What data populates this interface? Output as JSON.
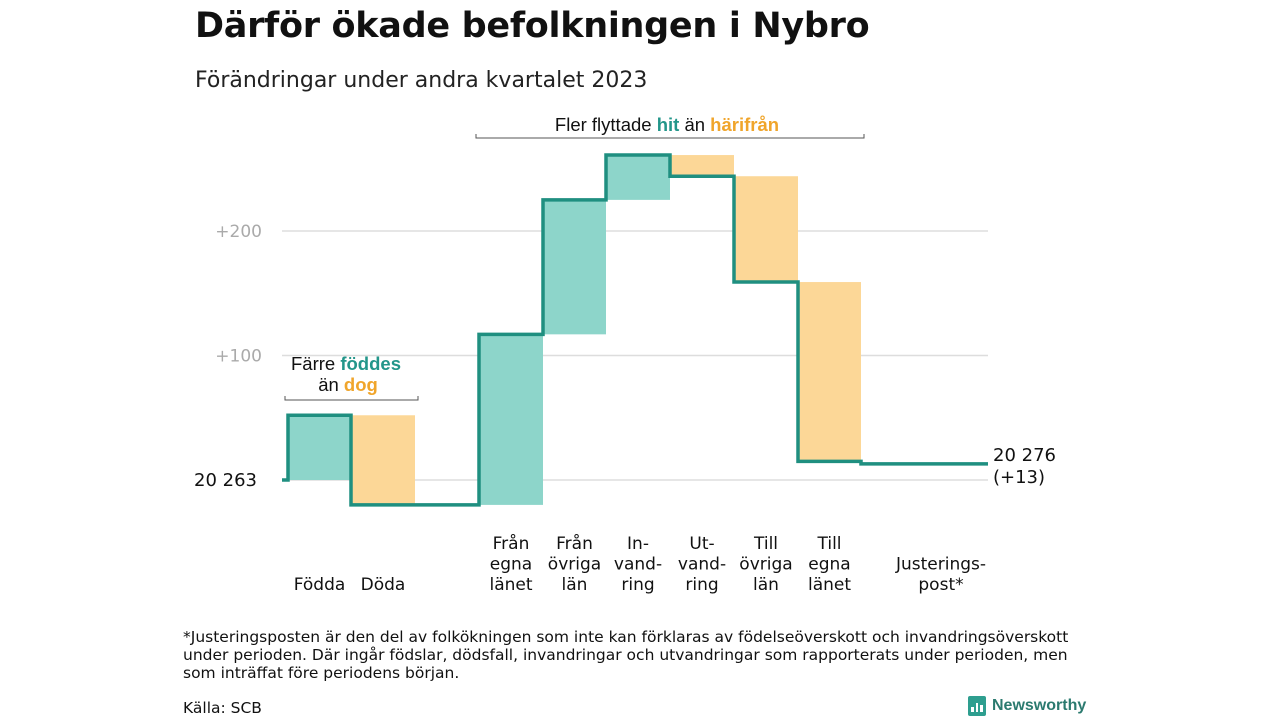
{
  "title": "Därför ökade befolkningen i Nybro",
  "subtitle": "Förändringar under andra kvartalet 2023",
  "footnote": "*Justeringsposten är den del av folkökningen som inte kan förklaras av födelseöverskott och invandringsöverskott under perioden. Där ingår födslar, dödsfall, invandringar och utvandringar som rapporterats under perioden, men som inträffat före periodens början.",
  "source": "Källa: SCB",
  "brand": "Newsworthy",
  "colors": {
    "positive_fill": "#8dd5ca",
    "negative_fill": "#fcd797",
    "line": "#1f8f80",
    "teal_text": "#23968a",
    "orange_text": "#f0a52b",
    "grid": "#dddddd"
  },
  "annotations": {
    "births": {
      "line1": "Färre",
      "hl1": "föddes",
      "line2": "än",
      "hl2": "dog"
    },
    "migration": {
      "prefix": "Fler flyttade",
      "hl1": "hit",
      "mid": "än",
      "hl2": "härifrån"
    }
  },
  "chart_data": {
    "type": "waterfall",
    "start_value": 20263,
    "start_label": "20  263",
    "end_label_line1": "20 276",
    "end_label_line2": "(+13)",
    "y_ticks": [
      {
        "value": 100,
        "label": "+100"
      },
      {
        "value": 200,
        "label": "+200"
      }
    ],
    "ylim": [
      -25,
      265
    ],
    "categories": [
      {
        "lines": [
          "Födda"
        ],
        "value": 52
      },
      {
        "lines": [
          "Döda"
        ],
        "value": -72
      },
      {
        "lines": [
          "Från",
          "egna",
          "länet"
        ],
        "value": 137
      },
      {
        "lines": [
          "Från",
          "övriga",
          "län"
        ],
        "value": 108
      },
      {
        "lines": [
          "In-",
          "vand-",
          "ring"
        ],
        "value": 36
      },
      {
        "lines": [
          "Ut-",
          "vand-",
          "ring"
        ],
        "value": -17
      },
      {
        "lines": [
          "Till",
          "övriga",
          "län"
        ],
        "value": -85
      },
      {
        "lines": [
          "Till",
          "egna",
          "länet"
        ],
        "value": -144
      },
      {
        "lines": [
          "Justerings-",
          "post*"
        ],
        "value": -2
      }
    ]
  }
}
